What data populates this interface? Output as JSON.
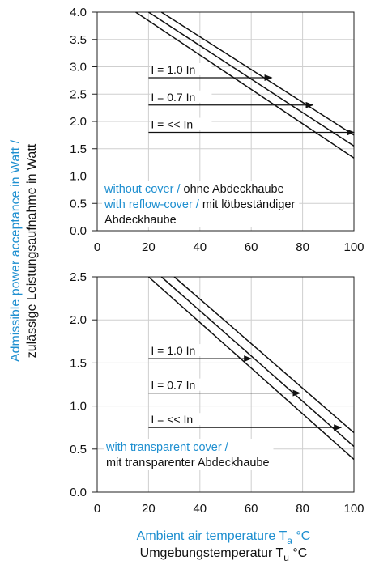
{
  "colors": {
    "accent": "#1e8fd0",
    "text": "#111111",
    "grid": "#cfcfcf",
    "axis": "#222222"
  },
  "y_axis_label_line1": "Admissible power acceptance in Watt /",
  "y_axis_label_line2": "zulässige Leistungsaufnahme in Watt",
  "x_axis_label_line1_main": "Ambient air temperature T",
  "x_axis_label_line1_sub": "a",
  "x_axis_label_line1_unit": " °C",
  "x_axis_label_line2_main": "Umgebungstemperatur T",
  "x_axis_label_line2_sub": "u",
  "x_axis_label_line2_unit": " °C",
  "chart_data": [
    {
      "type": "line",
      "xlim": [
        0,
        100
      ],
      "ylim": [
        0,
        4
      ],
      "x_ticks": [
        "0",
        "20",
        "40",
        "60",
        "80",
        "100"
      ],
      "y_ticks": [
        "0.0",
        "0.5",
        "1.0",
        "1.5",
        "2.0",
        "2.5",
        "3.0",
        "3.5",
        "4.0"
      ],
      "grid": true,
      "series": [
        {
          "name": "I = 1.0 In",
          "x": [
            15,
            100
          ],
          "y": [
            4.0,
            1.33
          ]
        },
        {
          "name": "I = 0.7 In",
          "x": [
            20,
            100
          ],
          "y": [
            4.0,
            1.55
          ]
        },
        {
          "name": "I = << In",
          "x": [
            25,
            100
          ],
          "y": [
            4.0,
            1.75
          ]
        }
      ],
      "annotations": [
        {
          "text": "I = 1.0 In",
          "arrow_from": 20,
          "arrow_to": 68,
          "y": 2.8
        },
        {
          "text": "I = 0.7 In",
          "arrow_from": 20,
          "arrow_to": 84,
          "y": 2.3
        },
        {
          "text": "I = << In",
          "arrow_from": 20,
          "arrow_to": 100,
          "y": 1.8
        }
      ],
      "legend_lines": [
        [
          {
            "text": "without cover / ",
            "color": "blue"
          },
          {
            "text": "ohne Abdeckhaube",
            "color": "black"
          }
        ],
        [
          {
            "text": "with reflow-cover / ",
            "color": "blue"
          },
          {
            "text": "mit lötbeständiger",
            "color": "black"
          }
        ],
        [
          {
            "text": "Abdeckhaube",
            "color": "black"
          }
        ]
      ]
    },
    {
      "type": "line",
      "xlim": [
        0,
        100
      ],
      "ylim": [
        0,
        2.5
      ],
      "x_ticks": [
        "0",
        "20",
        "40",
        "60",
        "80",
        "100"
      ],
      "y_ticks": [
        "0.0",
        "0.5",
        "1.0",
        "1.5",
        "2.0",
        "2.5"
      ],
      "grid": true,
      "series": [
        {
          "name": "I = 1.0 In",
          "x": [
            20,
            100
          ],
          "y": [
            2.5,
            0.38
          ]
        },
        {
          "name": "I = 0.7 In",
          "x": [
            25,
            100
          ],
          "y": [
            2.5,
            0.53
          ]
        },
        {
          "name": "I = << In",
          "x": [
            30,
            100
          ],
          "y": [
            2.5,
            0.69
          ]
        }
      ],
      "annotations": [
        {
          "text": "I = 1.0 In",
          "arrow_from": 20,
          "arrow_to": 60,
          "y": 1.55
        },
        {
          "text": "I = 0.7 In",
          "arrow_from": 20,
          "arrow_to": 79,
          "y": 1.15
        },
        {
          "text": "I = << In",
          "arrow_from": 20,
          "arrow_to": 95,
          "y": 0.75
        }
      ],
      "legend_lines": [
        [
          {
            "text": "with transparent cover /",
            "color": "blue"
          }
        ],
        [
          {
            "text": "mit transparenter Abdeckhaube",
            "color": "black"
          }
        ]
      ]
    }
  ]
}
